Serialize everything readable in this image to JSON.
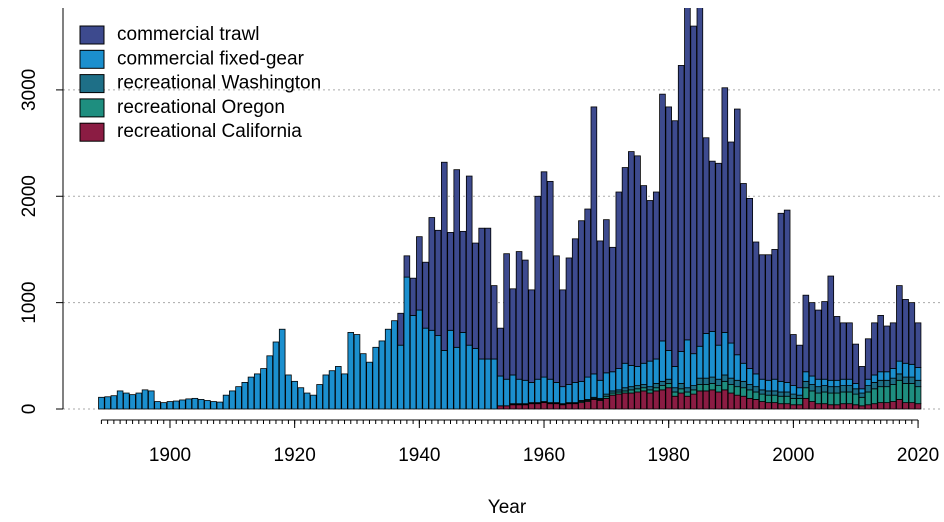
{
  "chart_data": {
    "type": "stacked-bar",
    "x_label": "Year",
    "x": [
      1889,
      1890,
      1891,
      1892,
      1893,
      1894,
      1895,
      1896,
      1897,
      1898,
      1899,
      1900,
      1901,
      1902,
      1903,
      1904,
      1905,
      1906,
      1907,
      1908,
      1909,
      1910,
      1911,
      1912,
      1913,
      1914,
      1915,
      1916,
      1917,
      1918,
      1919,
      1920,
      1921,
      1922,
      1923,
      1924,
      1925,
      1926,
      1927,
      1928,
      1929,
      1930,
      1931,
      1932,
      1933,
      1934,
      1935,
      1936,
      1937,
      1938,
      1939,
      1940,
      1941,
      1942,
      1943,
      1944,
      1945,
      1946,
      1947,
      1948,
      1949,
      1950,
      1951,
      1952,
      1953,
      1954,
      1955,
      1956,
      1957,
      1958,
      1959,
      1960,
      1961,
      1962,
      1963,
      1964,
      1965,
      1966,
      1967,
      1968,
      1969,
      1970,
      1971,
      1972,
      1973,
      1974,
      1975,
      1976,
      1977,
      1978,
      1979,
      1980,
      1981,
      1982,
      1983,
      1984,
      1985,
      1986,
      1987,
      1988,
      1989,
      1990,
      1991,
      1992,
      1993,
      1994,
      1995,
      1996,
      1997,
      1998,
      1999,
      2000,
      2001,
      2002,
      2003,
      2004,
      2005,
      2006,
      2007,
      2008,
      2009,
      2010,
      2011,
      2012,
      2013,
      2014,
      2015,
      2016,
      2017,
      2018,
      2019,
      2020
    ],
    "series": [
      {
        "name": "commercial trawl",
        "color": "#3d4a8e",
        "values": [
          0,
          0,
          0,
          0,
          0,
          0,
          0,
          0,
          0,
          0,
          0,
          0,
          0,
          0,
          0,
          0,
          0,
          0,
          0,
          0,
          0,
          0,
          0,
          0,
          0,
          0,
          0,
          0,
          0,
          0,
          0,
          0,
          0,
          0,
          0,
          0,
          0,
          0,
          0,
          0,
          0,
          0,
          0,
          0,
          0,
          0,
          0,
          0,
          300,
          200,
          350,
          690,
          620,
          1060,
          990,
          1770,
          920,
          1670,
          950,
          1590,
          990,
          1230,
          1230,
          690,
          450,
          1180,
          810,
          1200,
          1130,
          870,
          1720,
          1930,
          1860,
          1190,
          910,
          1190,
          1350,
          1510,
          1580,
          2510,
          1310,
          1440,
          1170,
          1660,
          1840,
          2010,
          1980,
          1670,
          1510,
          1570,
          2320,
          2290,
          2310,
          2690,
          3250,
          3080,
          3310,
          1840,
          1600,
          1710,
          2300,
          1890,
          2310,
          1690,
          1600,
          1240,
          1170,
          1180,
          1220,
          1580,
          1620,
          480,
          400,
          720,
          690,
          650,
          730,
          980,
          600,
          530,
          530,
          370,
          210,
          380,
          490,
          530,
          430,
          430,
          710,
          600,
          580,
          420
        ]
      },
      {
        "name": "commercial fixed-gear",
        "color": "#1b8fce",
        "values": [
          110,
          115,
          125,
          170,
          150,
          135,
          150,
          180,
          170,
          70,
          60,
          70,
          75,
          85,
          95,
          100,
          90,
          80,
          70,
          65,
          130,
          170,
          210,
          250,
          300,
          330,
          380,
          500,
          630,
          750,
          320,
          260,
          200,
          150,
          130,
          230,
          320,
          360,
          400,
          330,
          720,
          700,
          520,
          440,
          580,
          640,
          750,
          830,
          600,
          1240,
          880,
          930,
          760,
          740,
          690,
          550,
          740,
          580,
          720,
          600,
          570,
          470,
          470,
          470,
          280,
          250,
          270,
          230,
          220,
          190,
          220,
          230,
          220,
          190,
          160,
          170,
          190,
          180,
          210,
          220,
          170,
          200,
          180,
          200,
          230,
          200,
          180,
          200,
          240,
          230,
          380,
          270,
          200,
          300,
          450,
          300,
          300,
          420,
          430,
          320,
          400,
          330,
          240,
          170,
          150,
          120,
          100,
          100,
          110,
          100,
          90,
          80,
          70,
          90,
          80,
          70,
          60,
          60,
          60,
          60,
          60,
          50,
          40,
          60,
          70,
          80,
          80,
          90,
          120,
          130,
          120,
          120
        ]
      },
      {
        "name": "recreational Washington",
        "color": "#1e6f87",
        "values": [
          0,
          0,
          0,
          0,
          0,
          0,
          0,
          0,
          0,
          0,
          0,
          0,
          0,
          0,
          0,
          0,
          0,
          0,
          0,
          0,
          0,
          0,
          0,
          0,
          0,
          0,
          0,
          0,
          0,
          0,
          0,
          0,
          0,
          0,
          0,
          0,
          0,
          0,
          0,
          0,
          0,
          0,
          0,
          0,
          0,
          0,
          0,
          0,
          0,
          0,
          0,
          0,
          0,
          0,
          0,
          0,
          0,
          0,
          0,
          0,
          0,
          0,
          0,
          0,
          0,
          0,
          5,
          5,
          5,
          5,
          5,
          5,
          5,
          5,
          5,
          5,
          5,
          10,
          10,
          10,
          10,
          20,
          20,
          20,
          30,
          30,
          30,
          30,
          30,
          40,
          40,
          40,
          40,
          50,
          40,
          40,
          60,
          60,
          60,
          60,
          60,
          60,
          60,
          60,
          50,
          50,
          40,
          40,
          40,
          40,
          40,
          40,
          30,
          60,
          60,
          60,
          60,
          60,
          60,
          60,
          60,
          50,
          40,
          60,
          60,
          60,
          60,
          60,
          60,
          60,
          60,
          60
        ]
      },
      {
        "name": "recreational Oregon",
        "color": "#1e8e7f",
        "values": [
          0,
          0,
          0,
          0,
          0,
          0,
          0,
          0,
          0,
          0,
          0,
          0,
          0,
          0,
          0,
          0,
          0,
          0,
          0,
          0,
          0,
          0,
          0,
          0,
          0,
          0,
          0,
          0,
          0,
          0,
          0,
          0,
          0,
          0,
          0,
          0,
          0,
          0,
          0,
          0,
          0,
          0,
          0,
          0,
          0,
          0,
          0,
          0,
          0,
          0,
          0,
          0,
          0,
          0,
          0,
          0,
          0,
          0,
          0,
          0,
          0,
          0,
          0,
          0,
          0,
          0,
          5,
          5,
          5,
          5,
          5,
          5,
          5,
          5,
          5,
          5,
          5,
          10,
          10,
          10,
          10,
          20,
          20,
          20,
          20,
          30,
          30,
          30,
          30,
          30,
          40,
          40,
          40,
          40,
          40,
          40,
          60,
          60,
          60,
          60,
          80,
          80,
          80,
          80,
          80,
          70,
          70,
          70,
          70,
          70,
          70,
          60,
          60,
          100,
          100,
          100,
          110,
          110,
          110,
          110,
          110,
          100,
          80,
          120,
          140,
          150,
          150,
          160,
          180,
          180,
          180,
          160
        ]
      },
      {
        "name": "recreational California",
        "color": "#8b1c43",
        "values": [
          0,
          0,
          0,
          0,
          0,
          0,
          0,
          0,
          0,
          0,
          0,
          0,
          0,
          0,
          0,
          0,
          0,
          0,
          0,
          0,
          0,
          0,
          0,
          0,
          0,
          0,
          0,
          0,
          0,
          0,
          0,
          0,
          0,
          0,
          0,
          0,
          0,
          0,
          0,
          0,
          0,
          0,
          0,
          0,
          0,
          0,
          0,
          0,
          0,
          0,
          0,
          0,
          0,
          0,
          0,
          0,
          0,
          0,
          0,
          0,
          0,
          0,
          0,
          0,
          30,
          30,
          40,
          40,
          40,
          50,
          50,
          60,
          50,
          50,
          40,
          50,
          50,
          60,
          70,
          90,
          80,
          100,
          130,
          140,
          150,
          150,
          160,
          170,
          150,
          170,
          180,
          200,
          120,
          150,
          120,
          140,
          170,
          170,
          180,
          160,
          180,
          150,
          130,
          120,
          100,
          90,
          70,
          60,
          60,
          50,
          50,
          40,
          40,
          100,
          70,
          50,
          50,
          40,
          40,
          50,
          50,
          40,
          30,
          40,
          50,
          60,
          60,
          70,
          90,
          60,
          60,
          50
        ]
      }
    ],
    "xlim": [
      1883,
      2024
    ],
    "xticks": [
      1900,
      1920,
      1940,
      1960,
      1980,
      2000,
      2020
    ],
    "ylim": [
      0,
      3770
    ],
    "yticks": [
      0,
      1000,
      2000,
      3000
    ],
    "grid": true,
    "legend": "top-left"
  }
}
